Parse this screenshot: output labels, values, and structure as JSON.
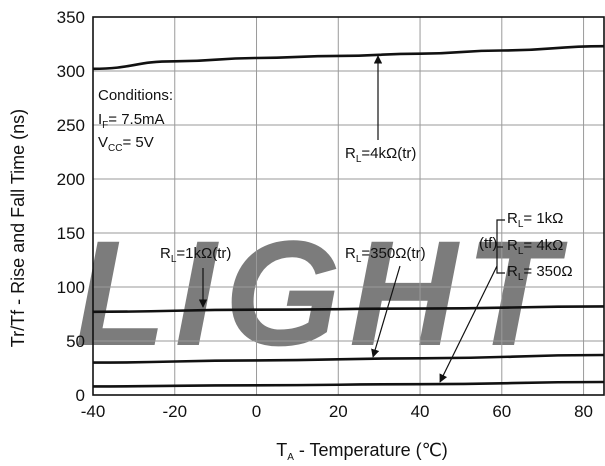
{
  "colors": {
    "line": "#111111",
    "grid": "#9a9a9a",
    "watermark": "#cfe1f1"
  },
  "watermark": {
    "text": "LIGHT",
    "note": "faint brand watermark"
  },
  "chart_data": {
    "type": "line",
    "title": "",
    "xlabel": "T_A - Temperature (°C)",
    "xlabel_main": "T",
    "xlabel_sub": "A",
    "xlabel_rest": " - Temperature (℃)",
    "ylabel": "Tr/Tf - Rise and Fall Time (ns)",
    "xlim": [
      -40,
      85
    ],
    "ylim": [
      0,
      350
    ],
    "grid": true,
    "xticks": [
      "-40",
      "-20",
      "0",
      "20",
      "40",
      "60",
      "80"
    ],
    "yticks": [
      "0",
      "50",
      "100",
      "150",
      "200",
      "250",
      "300",
      "350"
    ],
    "conditions": {
      "heading": "Conditions:",
      "if_main": "I",
      "if_sub": "F",
      "if_rest": "= 7.5mA",
      "vcc_main": "V",
      "vcc_sub": "CC",
      "vcc_rest": "= 5V"
    },
    "series": [
      {
        "name": "R_L=4kΩ(tr)",
        "x": [
          -40,
          -20,
          0,
          20,
          40,
          60,
          85
        ],
        "y": [
          302,
          309,
          312,
          314,
          316,
          319,
          323
        ]
      },
      {
        "name": "R_L=1kΩ(tr)",
        "x": [
          -40,
          0,
          40,
          85
        ],
        "y": [
          77,
          79,
          80,
          82
        ]
      },
      {
        "name": "R_L=350Ω(tr)",
        "x": [
          -40,
          0,
          40,
          85
        ],
        "y": [
          30,
          32,
          34,
          37
        ]
      },
      {
        "name": "(tf) R_L=1kΩ, 4kΩ, 350Ω",
        "x": [
          -40,
          0,
          40,
          85
        ],
        "y": [
          8,
          9,
          10,
          12
        ]
      }
    ],
    "annotations": {
      "rl4k": {
        "main": "R",
        "sub": "L",
        "rest": "=4kΩ(tr)"
      },
      "rl1k": {
        "main": "R",
        "sub": "L",
        "rest": "=1kΩ(tr)"
      },
      "rl350": {
        "main": "R",
        "sub": "L",
        "rest": "=350Ω(tr)"
      },
      "tf_label": "(tf)",
      "tf_1k": {
        "main": "R",
        "sub": "L",
        "rest": "= 1kΩ"
      },
      "tf_4k": {
        "main": "R",
        "sub": "L",
        "rest": "= 4kΩ"
      },
      "tf_350": {
        "main": "R",
        "sub": "L",
        "rest": "= 350Ω"
      }
    }
  }
}
